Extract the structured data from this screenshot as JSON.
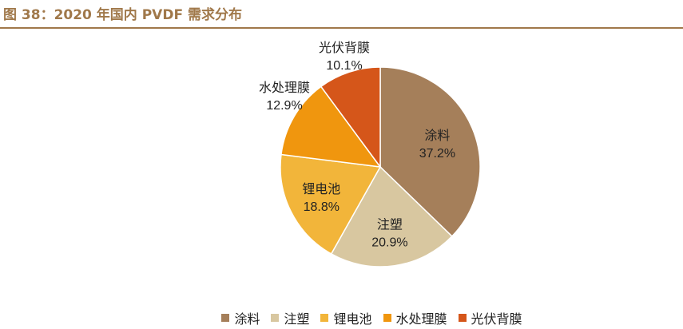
{
  "figure": {
    "title": "图 38：2020 年国内 PVDF 需求分布"
  },
  "chart_data": {
    "type": "pie",
    "title": "",
    "slices": [
      {
        "label": "涂料",
        "value": 37.2,
        "display": "37.2%",
        "color": "#a57f5a"
      },
      {
        "label": "注塑",
        "value": 20.9,
        "display": "20.9%",
        "color": "#d8c7a0"
      },
      {
        "label": "锂电池",
        "value": 18.8,
        "display": "18.8%",
        "color": "#f2b53a"
      },
      {
        "label": "水处理膜",
        "value": 12.9,
        "display": "12.9%",
        "color": "#f0960e"
      },
      {
        "label": "光伏背膜",
        "value": 10.1,
        "display": "10.1%",
        "color": "#d5561a"
      }
    ],
    "legend_position": "bottom",
    "start": "12 o'clock, clockwise"
  }
}
